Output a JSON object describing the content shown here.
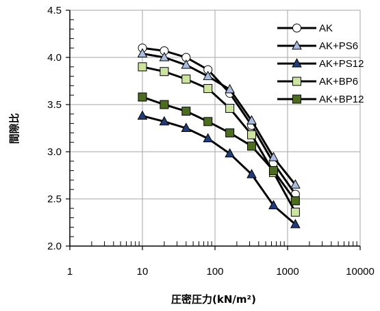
{
  "chart_data": {
    "type": "line",
    "xlabel": "圧密圧力(kN/m²)",
    "ylabel": "間隙比",
    "x_scale": "log",
    "xlim": [
      1,
      10000
    ],
    "ylim": [
      2.0,
      4.5
    ],
    "x_ticks": [
      "1",
      "10",
      "100",
      "1000",
      "10000"
    ],
    "y_ticks": [
      "2.0",
      "2.5",
      "3.0",
      "3.5",
      "4.0",
      "4.5"
    ],
    "grid": true,
    "legend_position": "top-right",
    "x": [
      10,
      20,
      40,
      80,
      160,
      320,
      640,
      1280
    ],
    "series": [
      {
        "name": "AK",
        "marker": "circle",
        "fill": "#ffffff",
        "values": [
          4.1,
          4.07,
          4.0,
          3.87,
          3.62,
          3.28,
          2.88,
          2.55
        ]
      },
      {
        "name": "AK+PS6",
        "marker": "triangle",
        "fill": "#a9bde0",
        "values": [
          4.04,
          4.0,
          3.92,
          3.8,
          3.66,
          3.33,
          2.94,
          2.65
        ]
      },
      {
        "name": "AK+PS12",
        "marker": "triangle",
        "fill": "#1f3c7a",
        "values": [
          3.38,
          3.32,
          3.25,
          3.14,
          2.98,
          2.76,
          2.43,
          2.23
        ]
      },
      {
        "name": "AK+BP6",
        "marker": "square",
        "fill": "#cde3a2",
        "values": [
          3.9,
          3.85,
          3.77,
          3.67,
          3.46,
          3.18,
          2.78,
          2.36
        ]
      },
      {
        "name": "AK+BP12",
        "marker": "square",
        "fill": "#4e6b22",
        "values": [
          3.58,
          3.5,
          3.43,
          3.32,
          3.2,
          3.06,
          2.8,
          2.48
        ]
      }
    ]
  }
}
